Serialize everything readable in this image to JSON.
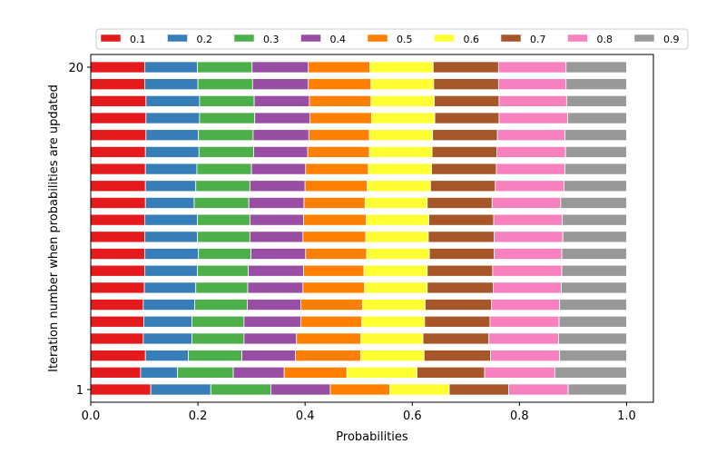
{
  "chart_data": {
    "type": "bar",
    "orientation": "horizontal",
    "stacked": true,
    "title": "",
    "xlabel": "Probabilities",
    "ylabel": "Iteration number when probabilities are updated",
    "xlim": [
      0,
      1.05
    ],
    "ylim": [
      0.25,
      20.75
    ],
    "xticks": [
      "0.0",
      "0.2",
      "0.4",
      "0.6",
      "0.8",
      "1.0"
    ],
    "xtick_values": [
      0,
      0.2,
      0.4,
      0.6,
      0.8,
      1.0
    ],
    "yticks": [
      "1",
      "20"
    ],
    "ytick_values": [
      1,
      20
    ],
    "grid": false,
    "legend_position": "top",
    "iterations": [
      1,
      2,
      3,
      4,
      5,
      6,
      7,
      8,
      9,
      10,
      11,
      12,
      13,
      14,
      15,
      16,
      17,
      18,
      19,
      20
    ],
    "series": [
      {
        "name": "0.1",
        "color": "#e41a1c",
        "values": [
          0.112,
          0.093,
          0.102,
          0.098,
          0.099,
          0.098,
          0.1,
          0.101,
          0.101,
          0.101,
          0.101,
          0.102,
          0.102,
          0.102,
          0.102,
          0.103,
          0.103,
          0.103,
          0.101,
          0.101
        ]
      },
      {
        "name": "0.2",
        "color": "#377eb8",
        "values": [
          0.112,
          0.069,
          0.08,
          0.091,
          0.09,
          0.096,
          0.096,
          0.098,
          0.1,
          0.098,
          0.098,
          0.091,
          0.094,
          0.096,
          0.1,
          0.098,
          0.1,
          0.1,
          0.099,
          0.098
        ]
      },
      {
        "name": "0.3",
        "color": "#4daf4a",
        "values": [
          0.112,
          0.104,
          0.1,
          0.097,
          0.097,
          0.098,
          0.097,
          0.095,
          0.098,
          0.098,
          0.098,
          0.102,
          0.101,
          0.102,
          0.102,
          0.102,
          0.103,
          0.102,
          0.102,
          0.102
        ]
      },
      {
        "name": "0.4",
        "color": "#984ea3",
        "values": [
          0.111,
          0.095,
          0.1,
          0.098,
          0.106,
          0.1,
          0.103,
          0.103,
          0.102,
          0.099,
          0.1,
          0.103,
          0.103,
          0.101,
          0.101,
          0.104,
          0.103,
          0.103,
          0.104,
          0.105
        ]
      },
      {
        "name": "0.5",
        "color": "#ff7f00",
        "values": [
          0.111,
          0.117,
          0.122,
          0.12,
          0.114,
          0.115,
          0.115,
          0.113,
          0.114,
          0.117,
          0.117,
          0.114,
          0.116,
          0.117,
          0.115,
          0.113,
          0.115,
          0.115,
          0.117,
          0.115
        ]
      },
      {
        "name": "0.6",
        "color": "#ffff33",
        "values": [
          0.111,
          0.131,
          0.118,
          0.116,
          0.117,
          0.117,
          0.117,
          0.118,
          0.117,
          0.117,
          0.117,
          0.116,
          0.118,
          0.118,
          0.117,
          0.118,
          0.118,
          0.118,
          0.117,
          0.118
        ]
      },
      {
        "name": "0.7",
        "color": "#a65628",
        "values": [
          0.111,
          0.126,
          0.124,
          0.123,
          0.122,
          0.124,
          0.123,
          0.122,
          0.121,
          0.123,
          0.121,
          0.121,
          0.121,
          0.121,
          0.121,
          0.121,
          0.12,
          0.121,
          0.121,
          0.122
        ]
      },
      {
        "name": "0.8",
        "color": "#f781bf",
        "values": [
          0.111,
          0.131,
          0.129,
          0.13,
          0.129,
          0.127,
          0.127,
          0.129,
          0.126,
          0.128,
          0.128,
          0.128,
          0.128,
          0.128,
          0.128,
          0.126,
          0.128,
          0.126,
          0.126,
          0.126
        ]
      },
      {
        "name": "0.9",
        "color": "#999999",
        "values": [
          0.109,
          0.134,
          0.125,
          0.127,
          0.126,
          0.125,
          0.122,
          0.121,
          0.121,
          0.119,
          0.12,
          0.123,
          0.117,
          0.115,
          0.114,
          0.115,
          0.11,
          0.112,
          0.113,
          0.113
        ]
      }
    ]
  }
}
